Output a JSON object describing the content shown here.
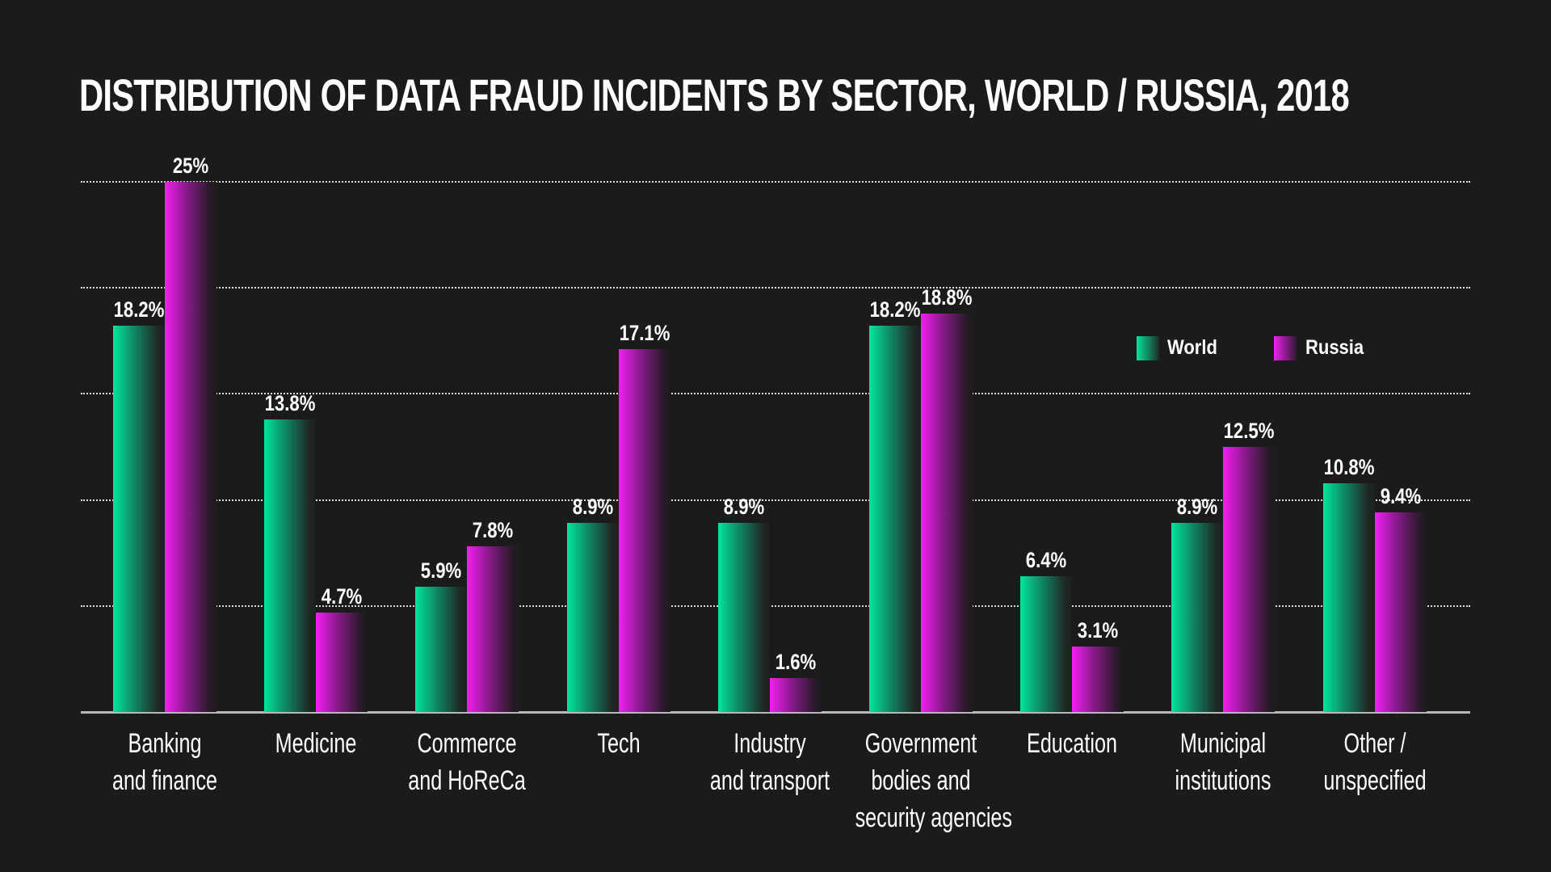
{
  "title": "DISTRIBUTION OF DATA FRAUD INCIDENTS BY SECTOR, WORLD / RUSSIA, 2018",
  "legend": {
    "world": "World",
    "russia": "Russia"
  },
  "colors": {
    "background": "#1b1b1b",
    "world": "#00e59b",
    "russia": "#f41ef4",
    "text": "#ffffff",
    "axis": "#b8b8b8"
  },
  "categories": [
    {
      "line1": "Banking",
      "line2": "and finance",
      "line3": "",
      "world_label": "18.2%",
      "russia_label": "25%"
    },
    {
      "line1": "Medicine",
      "line2": "",
      "line3": "",
      "world_label": "13.8%",
      "russia_label": "4.7%"
    },
    {
      "line1": "Commerce",
      "line2": "and HoReCa",
      "line3": "",
      "world_label": "5.9%",
      "russia_label": "7.8%"
    },
    {
      "line1": "Tech",
      "line2": "",
      "line3": "",
      "world_label": "8.9%",
      "russia_label": "17.1%"
    },
    {
      "line1": "Industry",
      "line2": "and transport",
      "line3": "",
      "world_label": "8.9%",
      "russia_label": "1.6%"
    },
    {
      "line1": "Government",
      "line2": "bodies and",
      "line3": "security agencies",
      "world_label": "18.2%",
      "russia_label": "18.8%"
    },
    {
      "line1": "Education",
      "line2": "",
      "line3": "",
      "world_label": "6.4%",
      "russia_label": "3.1%"
    },
    {
      "line1": "Municipal",
      "line2": "institutions",
      "line3": "",
      "world_label": "8.9%",
      "russia_label": "12.5%"
    },
    {
      "line1": "Other /",
      "line2": "unspecified",
      "line3": "",
      "world_label": "10.8%",
      "russia_label": "9.4%"
    }
  ],
  "chart_data": {
    "type": "bar",
    "title": "DISTRIBUTION OF DATA FRAUD INCIDENTS BY SECTOR, WORLD / RUSSIA, 2018",
    "categories": [
      "Banking and finance",
      "Medicine",
      "Commerce and HoReCa",
      "Tech",
      "Industry and transport",
      "Government bodies and security agencies",
      "Education",
      "Municipal institutions",
      "Other / unspecified"
    ],
    "series": [
      {
        "name": "World",
        "values": [
          18.2,
          13.8,
          5.9,
          8.9,
          8.9,
          18.2,
          6.4,
          8.9,
          10.8
        ]
      },
      {
        "name": "Russia",
        "values": [
          25,
          4.7,
          7.8,
          17.1,
          1.6,
          18.8,
          3.1,
          12.5,
          9.4
        ]
      }
    ],
    "xlabel": "",
    "ylabel": "",
    "unit": "%",
    "ylim": [
      0,
      25
    ],
    "gridlines": [
      5,
      10,
      15,
      20,
      25
    ],
    "grid": true,
    "grid_style": "dotted",
    "legend_position": "upper right (inside plot)",
    "data_labels": true
  }
}
